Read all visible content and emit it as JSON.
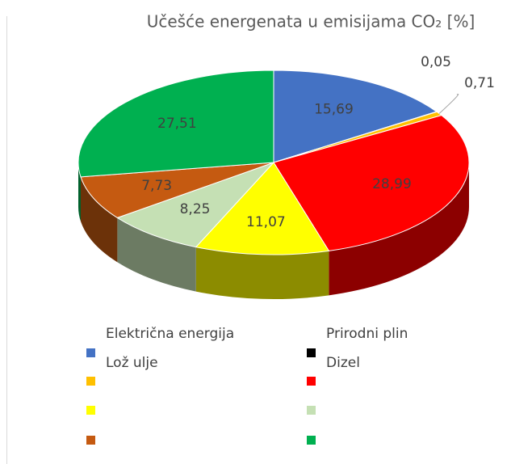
{
  "chart_data": {
    "type": "pie",
    "title": "Učešće energenata u emisijama CO₂ [%]",
    "categories": [
      "Električna energija",
      "Prirodni plin",
      "Lož ulje",
      "Dizel",
      null,
      null,
      null,
      null
    ],
    "values": [
      15.69,
      0.05,
      0.71,
      28.99,
      11.07,
      8.25,
      7.73,
      27.51
    ],
    "value_labels": [
      "15,69",
      "0,05",
      "0,71",
      "28,99",
      "11,07",
      "8,25",
      "7,73",
      "27,51"
    ],
    "colors": [
      "#4472c4",
      "#000000",
      "#ffc000",
      "#ff0000",
      "#ffff00",
      "#c5e0b4",
      "#c55a11",
      "#00b050"
    ],
    "legend": "bottom"
  }
}
